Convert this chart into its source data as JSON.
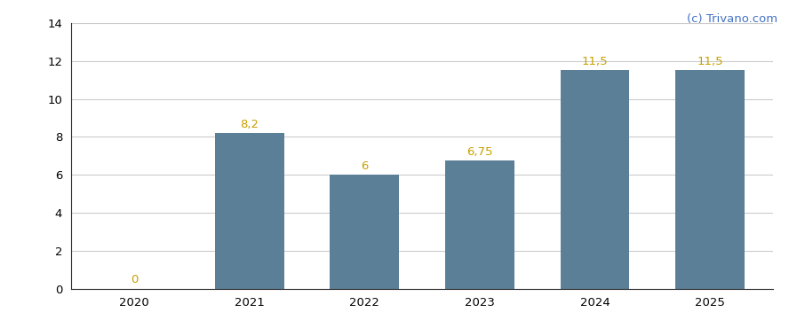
{
  "categories": [
    "2020",
    "2021",
    "2022",
    "2023",
    "2024",
    "2025"
  ],
  "values": [
    0,
    8.2,
    6,
    6.75,
    11.5,
    11.5
  ],
  "bar_color": "#5a7f96",
  "bar_width": 0.6,
  "ylim": [
    0,
    14
  ],
  "yticks": [
    0,
    2,
    4,
    6,
    8,
    10,
    12,
    14
  ],
  "label_color": "#c8a000",
  "label_fontsize": 9.5,
  "watermark_text": "(c) Trivano.com",
  "watermark_color": "#4472c4",
  "watermark_fontsize": 9.5,
  "background_color": "#ffffff",
  "grid_color": "#cccccc",
  "axis_color": "#333333",
  "tick_fontsize": 9.5,
  "value_labels": [
    "0",
    "8,2",
    "6",
    "6,75",
    "11,5",
    "11,5"
  ]
}
